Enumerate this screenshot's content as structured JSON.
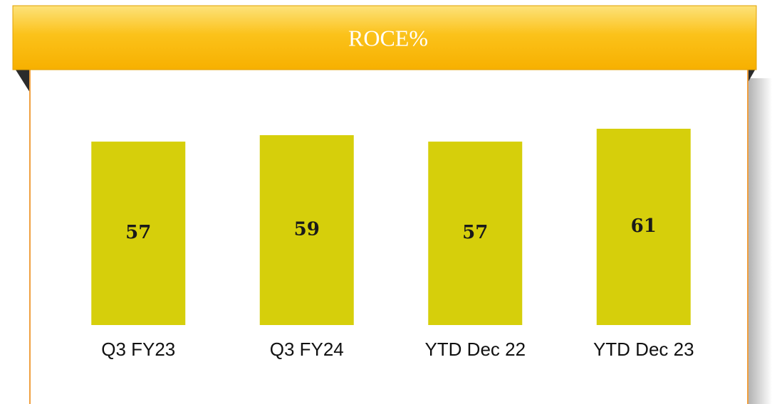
{
  "chart_data": {
    "type": "bar",
    "title": "ROCE%",
    "categories": [
      "Q3 FY23",
      "Q3 FY24",
      "YTD Dec 22",
      "YTD Dec 23"
    ],
    "values": [
      57,
      59,
      57,
      61
    ],
    "color": "#d6cf0b"
  }
}
